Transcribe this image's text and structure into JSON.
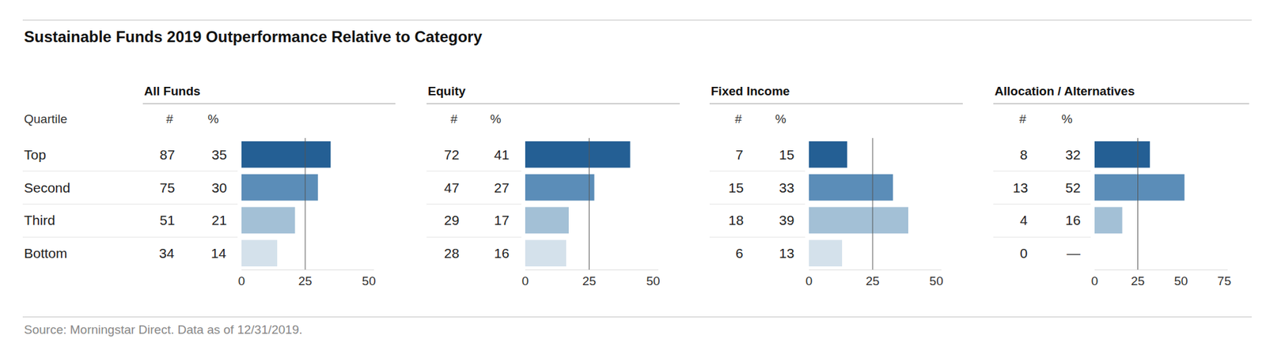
{
  "title": "Sustainable Funds 2019 Outperformance Relative to Category",
  "source": "Source: Morningstar Direct. Data as of 12/31/2019.",
  "row_header": "Quartile",
  "count_header": "#",
  "percent_header": "%",
  "chart_data": [
    {
      "type": "bar",
      "orientation": "horizontal",
      "title": "All Funds",
      "categories": [
        "Top",
        "Second",
        "Third",
        "Bottom"
      ],
      "counts": [
        87,
        75,
        51,
        34
      ],
      "values": [
        35,
        30,
        21,
        14
      ],
      "colors": [
        "#245f94",
        "#5b8db8",
        "#a3c0d6",
        "#d4e1eb"
      ],
      "xlim": [
        0,
        52
      ],
      "xticks": [
        0,
        25,
        50
      ],
      "reference_line": 25,
      "grid": false,
      "tick_labels": "x"
    },
    {
      "type": "bar",
      "orientation": "horizontal",
      "title": "Equity",
      "categories": [
        "Top",
        "Second",
        "Third",
        "Bottom"
      ],
      "counts": [
        72,
        47,
        29,
        28
      ],
      "values": [
        41,
        27,
        17,
        16
      ],
      "colors": [
        "#245f94",
        "#5b8db8",
        "#a3c0d6",
        "#d4e1eb"
      ],
      "xlim": [
        0,
        52
      ],
      "xticks": [
        0,
        25,
        50
      ],
      "reference_line": 25,
      "grid": false,
      "tick_labels": "x"
    },
    {
      "type": "bar",
      "orientation": "horizontal",
      "title": "Fixed Income",
      "categories": [
        "Top",
        "Second",
        "Third",
        "Bottom"
      ],
      "counts": [
        7,
        15,
        18,
        6
      ],
      "values": [
        15,
        33,
        39,
        13
      ],
      "colors": [
        "#245f94",
        "#5b8db8",
        "#a3c0d6",
        "#d4e1eb"
      ],
      "xlim": [
        0,
        52
      ],
      "xticks": [
        0,
        25,
        50
      ],
      "reference_line": 25,
      "grid": false,
      "tick_labels": "x"
    },
    {
      "type": "bar",
      "orientation": "horizontal",
      "title": "Allocation / Alternatives",
      "categories": [
        "Top",
        "Second",
        "Third",
        "Bottom"
      ],
      "counts": [
        8,
        13,
        4,
        0
      ],
      "values": [
        32,
        52,
        16,
        null
      ],
      "value_labels": [
        "32",
        "52",
        "16",
        "—"
      ],
      "colors": [
        "#245f94",
        "#5b8db8",
        "#a3c0d6",
        "#d4e1eb"
      ],
      "xlim": [
        0,
        77
      ],
      "xticks": [
        0,
        25,
        50,
        75
      ],
      "reference_line": 25,
      "grid": false,
      "tick_labels": "x"
    }
  ]
}
